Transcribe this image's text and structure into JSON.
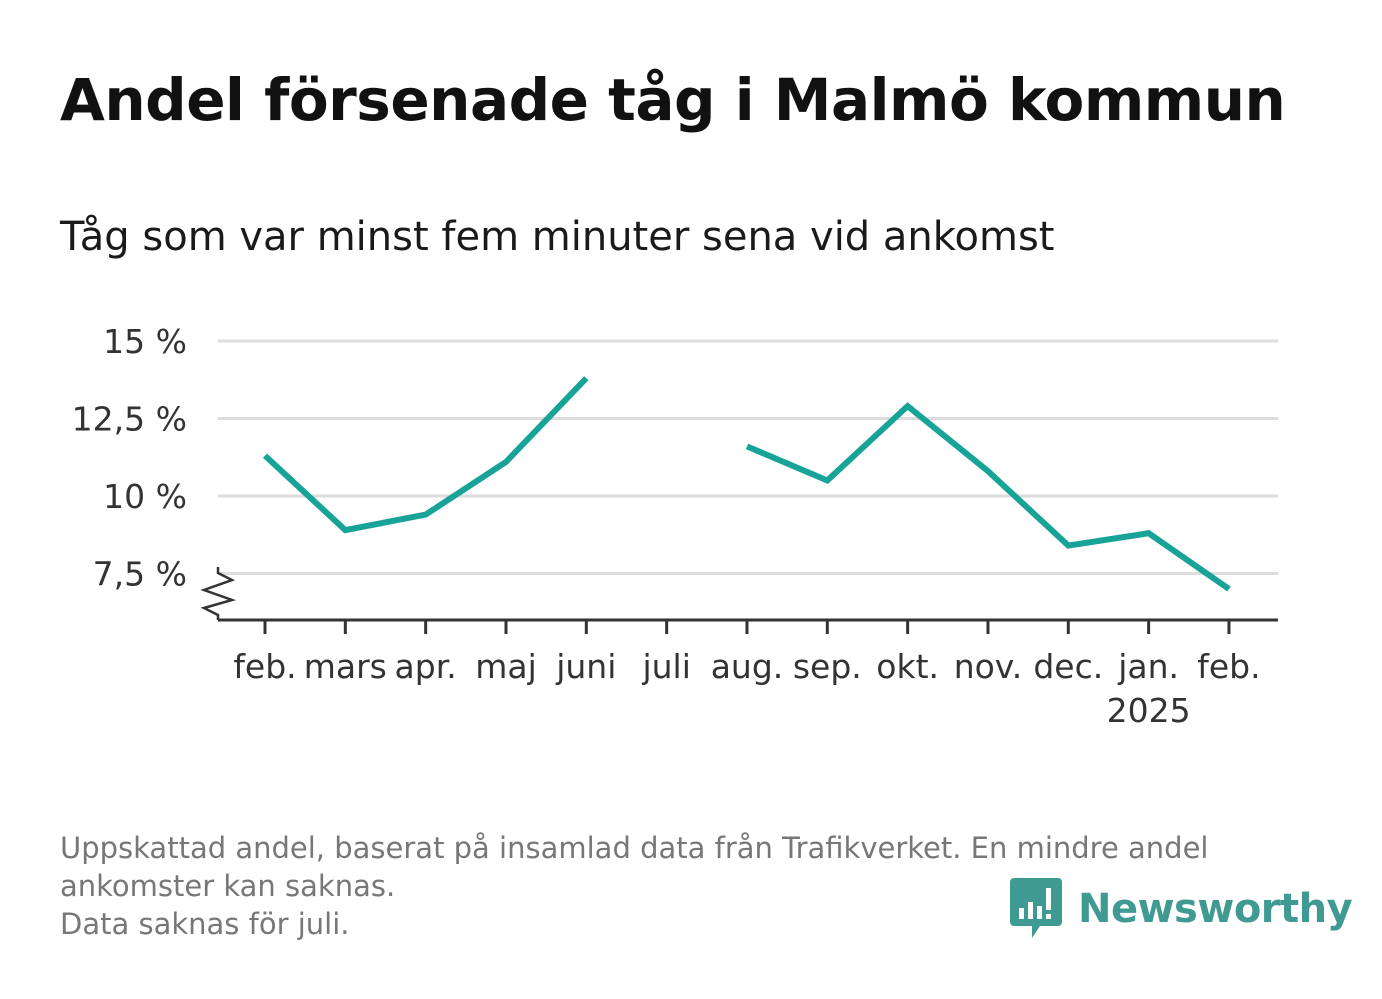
{
  "title": "Andel försenade tåg i Malmö kommun",
  "subtitle": "Tåg som var minst fem minuter sena vid ankomst",
  "footnote": {
    "line1": "Uppskattad andel, baserat på insamlad data från Trafikverket. En mindre andel",
    "line2": "ankomster kan saknas.",
    "line3": "Data saknas för juli."
  },
  "brand": {
    "name": "Newsworthy",
    "color": "#3f9a91"
  },
  "chart_data": {
    "type": "line",
    "title": "Andel försenade tåg i Malmö kommun",
    "subtitle": "Tåg som var minst fem minuter sena vid ankomst",
    "categories": [
      "feb.",
      "mars",
      "apr.",
      "maj",
      "juni",
      "juli",
      "aug.",
      "sep.",
      "okt.",
      "nov.",
      "dec.",
      "jan.",
      "feb."
    ],
    "year_label": {
      "index": 11,
      "text": "2025"
    },
    "series": [
      {
        "color": "#17a398",
        "values": [
          11.3,
          8.9,
          9.4,
          11.1,
          13.8,
          null,
          11.6,
          10.5,
          12.9,
          10.8,
          8.4,
          8.8,
          7.0
        ]
      }
    ],
    "yticks": [
      {
        "value": 7.5,
        "label": "7,5 %"
      },
      {
        "value": 10,
        "label": "10 %"
      },
      {
        "value": 12.5,
        "label": "12,5 %"
      },
      {
        "value": 15,
        "label": "15 %"
      }
    ],
    "ylim": [
      6,
      15
    ],
    "grid": true,
    "axis_break": true,
    "gridline_color": "#dddddd",
    "axis_color": "#333333"
  }
}
